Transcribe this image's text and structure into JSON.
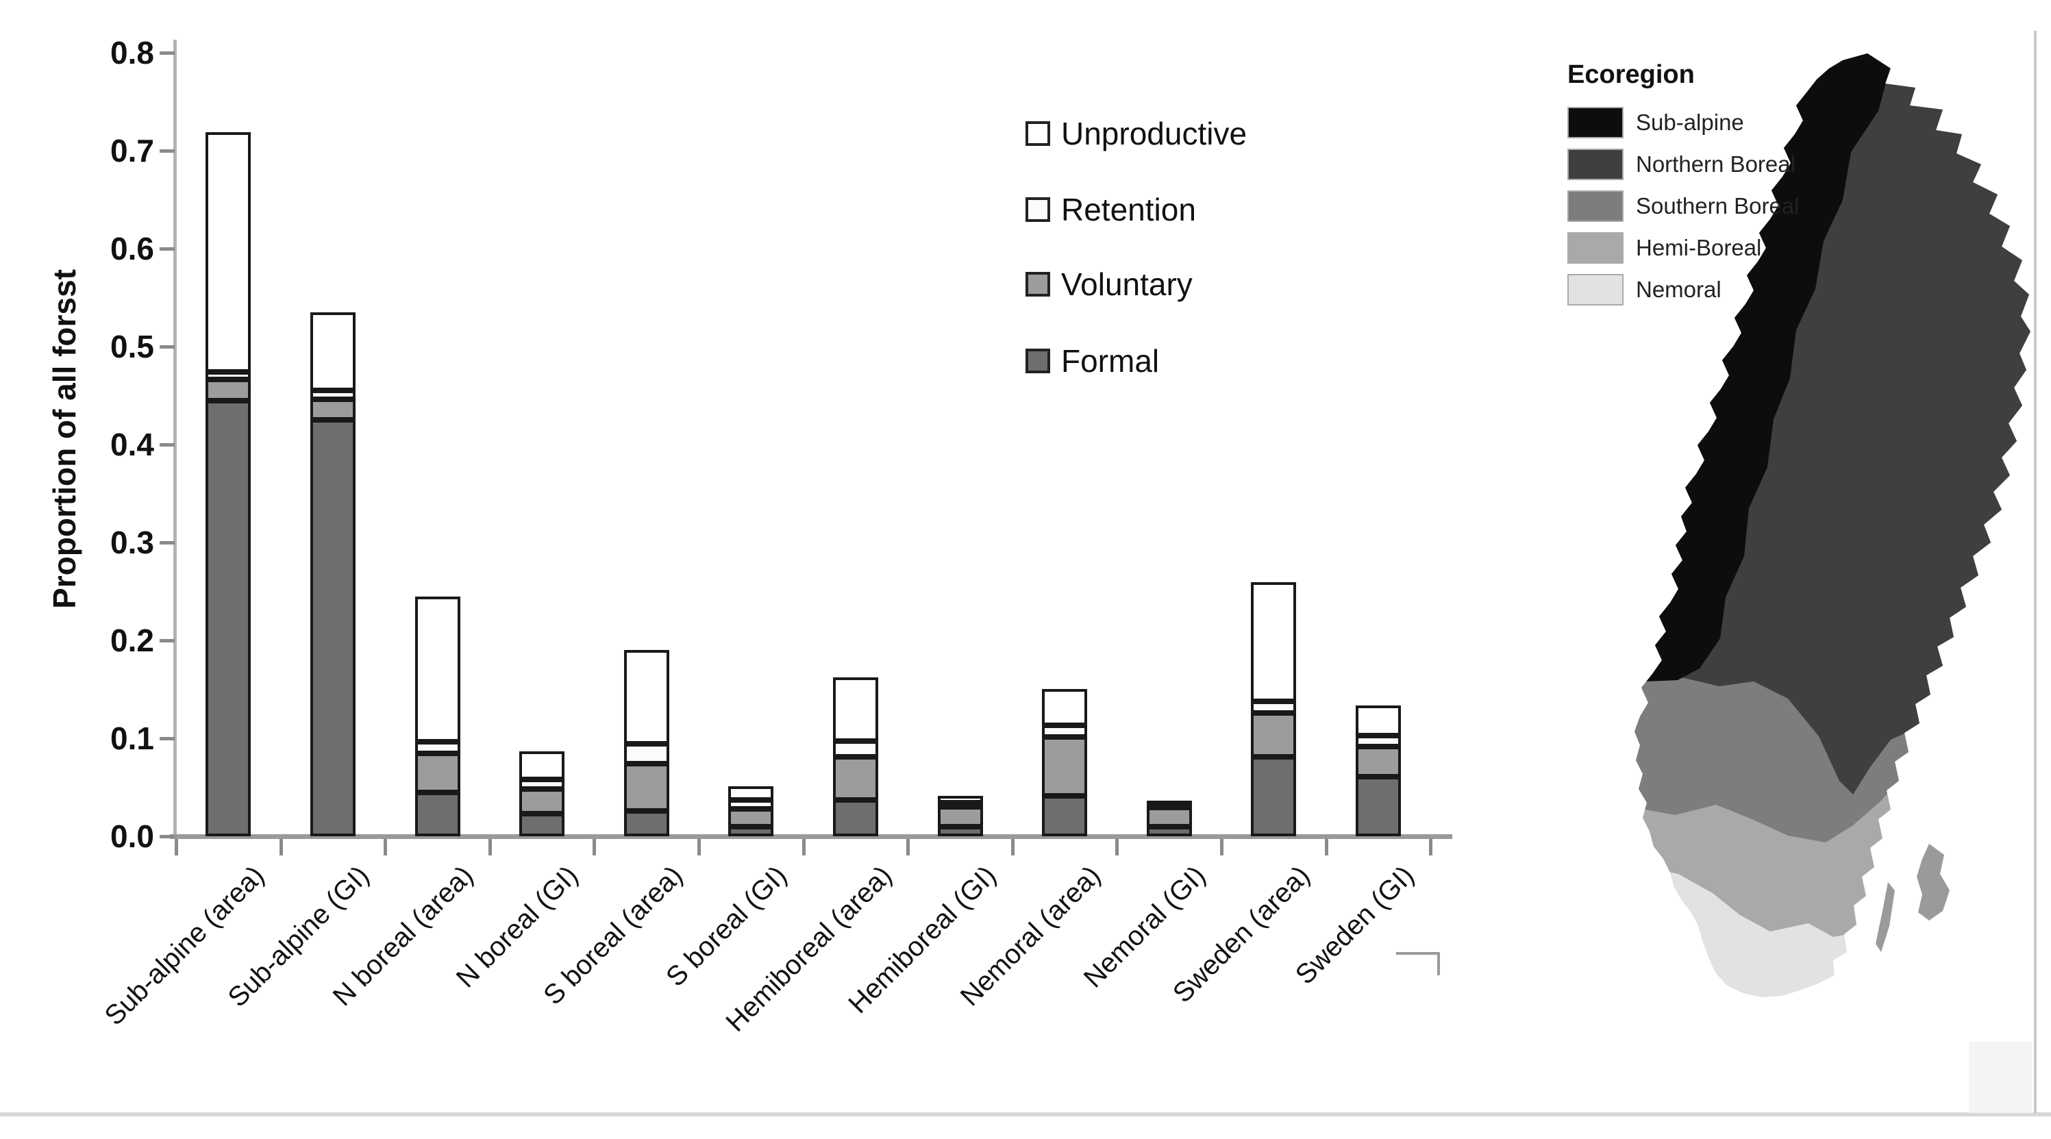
{
  "chart_data": {
    "type": "bar",
    "stacked": true,
    "title": "",
    "xlabel": "",
    "ylabel": "Proportion of all forsst",
    "ylim": [
      0,
      0.8
    ],
    "y_ticks": [
      "0.0",
      "0.1",
      "0.2",
      "0.3",
      "0.4",
      "0.5",
      "0.6",
      "0.7",
      "0.8"
    ],
    "grid": false,
    "legend_position": "inside top-right, no frame, vertical",
    "categories": [
      "Sub-alpine (area)",
      "Sub-alpine (GI)",
      "N boreal (area)",
      "N boreal (GI)",
      "S boreal (area)",
      "S boreal (GI)",
      "Hemiboreal (area)",
      "Hemiboreal (GI)",
      "Nemoral (area)",
      "Nemoral (GI)",
      "Sweden (area)",
      "Sweden (GI)"
    ],
    "series": [
      {
        "name": "Formal",
        "color": "#6e6e6e",
        "values": [
          0.445,
          0.425,
          0.045,
          0.023,
          0.026,
          0.01,
          0.037,
          0.01,
          0.041,
          0.01,
          0.081,
          0.061
        ]
      },
      {
        "name": "Voluntary",
        "color": "#9c9c9c",
        "values": [
          0.022,
          0.021,
          0.04,
          0.025,
          0.048,
          0.018,
          0.044,
          0.02,
          0.06,
          0.02,
          0.045,
          0.031
        ]
      },
      {
        "name": "Retention",
        "color": "#fbfbfb",
        "values": [
          0.008,
          0.009,
          0.012,
          0.01,
          0.02,
          0.009,
          0.016,
          0.004,
          0.012,
          0.002,
          0.012,
          0.011
        ]
      },
      {
        "name": "Unproductive",
        "color": "#ffffff",
        "values": [
          0.245,
          0.08,
          0.148,
          0.029,
          0.096,
          0.014,
          0.065,
          0.007,
          0.037,
          0.004,
          0.122,
          0.031
        ]
      }
    ],
    "totals": [
      0.72,
      0.535,
      0.245,
      0.087,
      0.19,
      0.051,
      0.162,
      0.041,
      0.15,
      0.036,
      0.26,
      0.134
    ],
    "legend_order": [
      "Unproductive",
      "Retention",
      "Voluntary",
      "Formal"
    ]
  },
  "map": {
    "legend_title": "Ecoregion",
    "regions": [
      {
        "name": "Sub-alpine",
        "color": "#0d0d0d"
      },
      {
        "name": "Northern Boreal",
        "color": "#3f3f3f"
      },
      {
        "name": "Southern Boreal",
        "color": "#7d7d7d"
      },
      {
        "name": "Hemi-Boreal",
        "color": "#a9a9a9"
      },
      {
        "name": "Nemoral",
        "color": "#e2e2e2"
      }
    ],
    "island_color": "#9a9a9a"
  },
  "colors": {
    "axis": "#9a9a9a",
    "tick": "#8a8a8a",
    "text": "#111111",
    "bar_border": "#191919",
    "page_rule": "#d8d8d8",
    "side_rule": "#c9c9c9",
    "corner_box": "#f4f4f4",
    "bracket": "#9a9a9a",
    "background": "#ffffff"
  }
}
